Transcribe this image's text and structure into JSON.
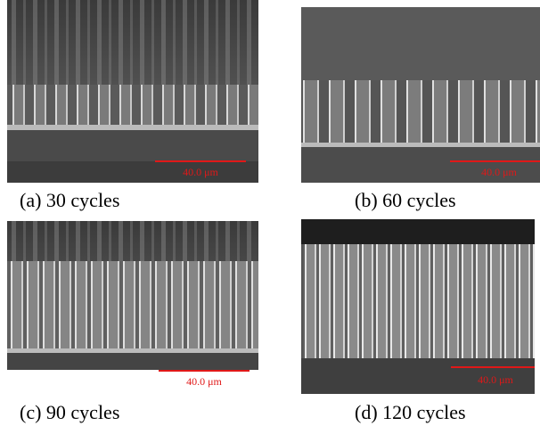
{
  "panels": [
    {
      "caption": "(a) 30 cycles",
      "scale_bar": "40.0 μm"
    },
    {
      "caption": "(b) 60 cycles",
      "scale_bar": "40.0 μm"
    },
    {
      "caption": "(c) 90 cycles",
      "scale_bar": "40.0 μm"
    },
    {
      "caption": "(d) 120 cycles",
      "scale_bar": "40.0 μm"
    }
  ]
}
